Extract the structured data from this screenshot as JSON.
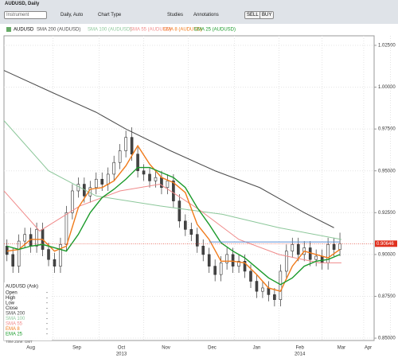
{
  "window": {
    "title": "AUDUSD, Daily"
  },
  "toolbar": {
    "instrument": "Instrument",
    "interval": "Daily, Auto",
    "chart_type": "Chart Type",
    "studies": "Studies",
    "annotations": "Annotations",
    "sell": "SELL",
    "buy": "BUY"
  },
  "info_panel": {
    "title": "AUDUSD (Ask)",
    "rows": [
      [
        "Open",
        "-"
      ],
      [
        "High",
        "-"
      ],
      [
        "Low",
        "-"
      ],
      [
        "Close",
        "-"
      ],
      [
        "SMA 200",
        "-"
      ],
      [
        "SMA 100",
        "-"
      ],
      [
        "SMA 55",
        "-"
      ],
      [
        "EMA 8",
        "-"
      ],
      [
        "EMA 25",
        "-"
      ]
    ],
    "footer": "Time Zone: GMT"
  },
  "chart_data": {
    "type": "candlestick",
    "symbol": "AUDUSD",
    "ylim": [
      0.8486,
      1.0307
    ],
    "yticks": [
      {
        "value": 0.85,
        "label": "0.85000"
      },
      {
        "value": 0.875,
        "label": "0.87500"
      },
      {
        "value": 0.9,
        "label": "0.90000"
      },
      {
        "value": 0.925,
        "label": "0.92500"
      },
      {
        "value": 0.95,
        "label": "0.95000"
      },
      {
        "value": 0.975,
        "label": "0.97500"
      },
      {
        "value": 1.0,
        "label": "1.00000"
      },
      {
        "value": 1.025,
        "label": "1.02500"
      }
    ],
    "xlim": [
      28,
      277
    ],
    "xticks": [
      {
        "value": 46,
        "label": "Aug"
      },
      {
        "value": 77,
        "label": "Sep"
      },
      {
        "value": 107,
        "label": "Oct"
      },
      {
        "value": 137,
        "label": "Nov"
      },
      {
        "value": 168,
        "label": "Dec"
      },
      {
        "value": 198,
        "label": "Jan"
      },
      {
        "value": 227,
        "label": "Feb"
      },
      {
        "value": 255,
        "label": "Mar"
      },
      {
        "value": 273,
        "label": "Apr"
      }
    ],
    "years": [
      {
        "value": 107,
        "label": "2013"
      },
      {
        "value": 227,
        "label": "2014"
      }
    ],
    "grid": true,
    "candles": {
      "up_color": "#ffffff",
      "down_color": "#444444",
      "x": [
        30,
        34,
        38,
        42,
        46,
        50,
        54,
        58,
        62,
        66,
        70,
        74,
        78,
        82,
        86,
        90,
        94,
        98,
        102,
        106,
        110,
        114,
        118,
        122,
        126,
        130,
        134,
        138,
        142,
        146,
        150,
        154,
        158,
        162,
        166,
        170,
        174,
        178,
        182,
        186,
        190,
        194,
        198,
        202,
        206,
        210,
        214,
        218,
        222,
        226,
        230,
        234,
        238,
        242,
        246,
        250,
        254
      ],
      "open": [
        0.905,
        0.9,
        0.893,
        0.908,
        0.912,
        0.905,
        0.915,
        0.903,
        0.897,
        0.893,
        0.906,
        0.925,
        0.938,
        0.942,
        0.935,
        0.94,
        0.945,
        0.942,
        0.948,
        0.955,
        0.962,
        0.97,
        0.96,
        0.95,
        0.948,
        0.944,
        0.946,
        0.94,
        0.944,
        0.932,
        0.92,
        0.915,
        0.912,
        0.905,
        0.9,
        0.893,
        0.888,
        0.895,
        0.9,
        0.893,
        0.896,
        0.89,
        0.884,
        0.878,
        0.88,
        0.876,
        0.873,
        0.89,
        0.902,
        0.906,
        0.9,
        0.904,
        0.897,
        0.899,
        0.895,
        0.906,
        0.903
      ],
      "high": [
        0.909,
        0.904,
        0.912,
        0.916,
        0.916,
        0.919,
        0.919,
        0.907,
        0.901,
        0.91,
        0.929,
        0.942,
        0.946,
        0.946,
        0.944,
        0.949,
        0.949,
        0.952,
        0.959,
        0.966,
        0.974,
        0.976,
        0.964,
        0.954,
        0.952,
        0.95,
        0.95,
        0.948,
        0.948,
        0.936,
        0.924,
        0.919,
        0.916,
        0.909,
        0.904,
        0.897,
        0.899,
        0.904,
        0.904,
        0.9,
        0.9,
        0.894,
        0.888,
        0.884,
        0.884,
        0.88,
        0.894,
        0.906,
        0.91,
        0.91,
        0.908,
        0.908,
        0.903,
        0.903,
        0.91,
        0.91,
        0.913
      ],
      "low": [
        0.896,
        0.889,
        0.889,
        0.904,
        0.901,
        0.901,
        0.899,
        0.893,
        0.889,
        0.889,
        0.902,
        0.921,
        0.934,
        0.931,
        0.931,
        0.936,
        0.938,
        0.938,
        0.944,
        0.951,
        0.958,
        0.956,
        0.946,
        0.944,
        0.94,
        0.94,
        0.936,
        0.936,
        0.928,
        0.916,
        0.911,
        0.908,
        0.901,
        0.896,
        0.889,
        0.884,
        0.884,
        0.891,
        0.889,
        0.889,
        0.886,
        0.88,
        0.874,
        0.874,
        0.872,
        0.869,
        0.869,
        0.886,
        0.898,
        0.896,
        0.896,
        0.893,
        0.893,
        0.891,
        0.891,
        0.899,
        0.899
      ],
      "close": [
        0.9,
        0.893,
        0.908,
        0.912,
        0.905,
        0.915,
        0.903,
        0.897,
        0.893,
        0.906,
        0.925,
        0.938,
        0.942,
        0.935,
        0.94,
        0.945,
        0.942,
        0.948,
        0.955,
        0.962,
        0.97,
        0.96,
        0.95,
        0.948,
        0.944,
        0.946,
        0.94,
        0.944,
        0.932,
        0.92,
        0.915,
        0.912,
        0.905,
        0.9,
        0.893,
        0.888,
        0.895,
        0.9,
        0.893,
        0.896,
        0.89,
        0.884,
        0.878,
        0.88,
        0.876,
        0.873,
        0.89,
        0.902,
        0.906,
        0.9,
        0.904,
        0.897,
        0.899,
        0.895,
        0.906,
        0.903,
        0.9065
      ]
    },
    "series": [
      {
        "name": "SMA 200 (AUDUSD)",
        "color": "#4a4a4a",
        "x": [
          28,
          60,
          90,
          110,
          140,
          170,
          200,
          230,
          250
        ],
        "values": [
          1.01,
          0.997,
          0.985,
          0.975,
          0.962,
          0.95,
          0.94,
          0.925,
          0.916
        ]
      },
      {
        "name": "SMA 100 (AUDUSD)",
        "color": "#8cc79a",
        "x": [
          28,
          58,
          90,
          133,
          175,
          213,
          255
        ],
        "values": [
          0.98,
          0.95,
          0.935,
          0.929,
          0.924,
          0.916,
          0.909
        ]
      },
      {
        "name": "SMA 55 (AUDUSD)",
        "color": "#f08a8a",
        "x": [
          28,
          52,
          79,
          106,
          133,
          159,
          186,
          213,
          240,
          255
        ],
        "values": [
          0.938,
          0.914,
          0.929,
          0.938,
          0.942,
          0.927,
          0.909,
          0.9,
          0.895,
          0.895
        ]
      },
      {
        "name": "EMA 8 (AUDUSD)",
        "color": "#f07a1a",
        "x": [
          30,
          38,
          46,
          54,
          62,
          70,
          78,
          86,
          94,
          102,
          110,
          118,
          126,
          134,
          142,
          150,
          158,
          166,
          174,
          182,
          190,
          198,
          206,
          214,
          222,
          230,
          238,
          246,
          254
        ],
        "values": [
          0.902,
          0.903,
          0.909,
          0.909,
          0.902,
          0.905,
          0.928,
          0.939,
          0.94,
          0.944,
          0.953,
          0.965,
          0.954,
          0.946,
          0.943,
          0.937,
          0.918,
          0.909,
          0.896,
          0.896,
          0.895,
          0.888,
          0.88,
          0.878,
          0.893,
          0.902,
          0.9,
          0.898,
          0.903
        ]
      },
      {
        "name": "EMA 25 (AUDUSD)",
        "color": "#1a9a2a",
        "x": [
          30,
          38,
          46,
          54,
          62,
          70,
          78,
          86,
          94,
          102,
          110,
          118,
          126,
          134,
          142,
          150,
          158,
          166,
          174,
          182,
          190,
          198,
          206,
          214,
          222,
          230,
          238,
          246,
          254
        ],
        "values": [
          0.905,
          0.903,
          0.905,
          0.906,
          0.904,
          0.902,
          0.912,
          0.925,
          0.934,
          0.939,
          0.945,
          0.952,
          0.952,
          0.949,
          0.946,
          0.94,
          0.928,
          0.918,
          0.907,
          0.902,
          0.898,
          0.892,
          0.886,
          0.882,
          0.886,
          0.893,
          0.896,
          0.897,
          0.9
        ]
      }
    ],
    "trendline": {
      "color": "#5b8fd6",
      "y": 0.9075,
      "x": [
        166,
        254
      ]
    },
    "last_price": {
      "value": 0.90646,
      "label": "0.90646",
      "color": "#e0301e"
    }
  }
}
